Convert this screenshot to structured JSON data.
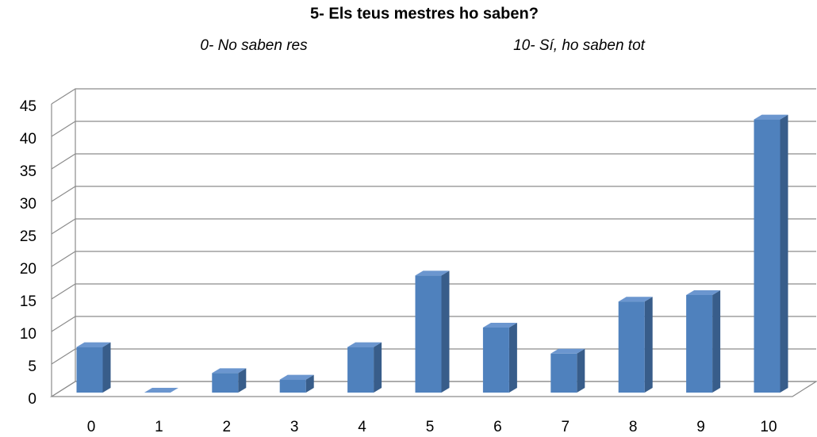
{
  "chart_data": {
    "type": "bar3d",
    "title": "5- Els teus mestres ho saben?",
    "subtitle": [
      "0- No saben res",
      "10- Sí, ho saben tot"
    ],
    "categories": [
      "0",
      "1",
      "2",
      "3",
      "4",
      "5",
      "6",
      "7",
      "8",
      "9",
      "10"
    ],
    "values": [
      7,
      0,
      3,
      2,
      7,
      18,
      10,
      6,
      14,
      15,
      42
    ],
    "color": "#4f81bd",
    "ylim": [
      0,
      45
    ],
    "yticks": [
      0,
      5,
      10,
      15,
      20,
      25,
      30,
      35,
      40,
      45
    ],
    "grid": true
  }
}
